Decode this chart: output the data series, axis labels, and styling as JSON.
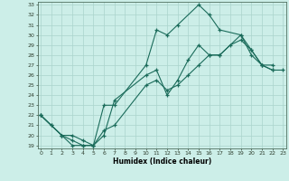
{
  "xlabel": "Humidex (Indice chaleur)",
  "background_color": "#cceee8",
  "grid_color": "#aad4cc",
  "line_color": "#1a6b5a",
  "xmin": 0,
  "xmax": 23,
  "ymin": 19,
  "ymax": 33,
  "line1_x": [
    0,
    1,
    2,
    3,
    4,
    5,
    6,
    7,
    10,
    11,
    12,
    13,
    15,
    16,
    17,
    19,
    20,
    21,
    22
  ],
  "line1_y": [
    22,
    21,
    20,
    19,
    19,
    19,
    23,
    23,
    27,
    30.5,
    30,
    31,
    33,
    32,
    30.5,
    30,
    28,
    27,
    26.5
  ],
  "line2_x": [
    0,
    1,
    2,
    3,
    4,
    5,
    6,
    7,
    10,
    11,
    12,
    13,
    14,
    15,
    16,
    17,
    19,
    20,
    21,
    22
  ],
  "line2_y": [
    22,
    21,
    20,
    19.5,
    19,
    19,
    20,
    23.5,
    26,
    26.5,
    24,
    25.5,
    27.5,
    29,
    28,
    28,
    30,
    28.5,
    27,
    27
  ],
  "line3_x": [
    0,
    2,
    3,
    4,
    5,
    6,
    7,
    10,
    11,
    12,
    13,
    14,
    15,
    16,
    17,
    18,
    19,
    20,
    21,
    22,
    23
  ],
  "line3_y": [
    22,
    20,
    20,
    19.5,
    19,
    20.5,
    21,
    25,
    25.5,
    24.5,
    25,
    26,
    27,
    28,
    28,
    29,
    29.5,
    28.5,
    27,
    26.5,
    26.5
  ]
}
